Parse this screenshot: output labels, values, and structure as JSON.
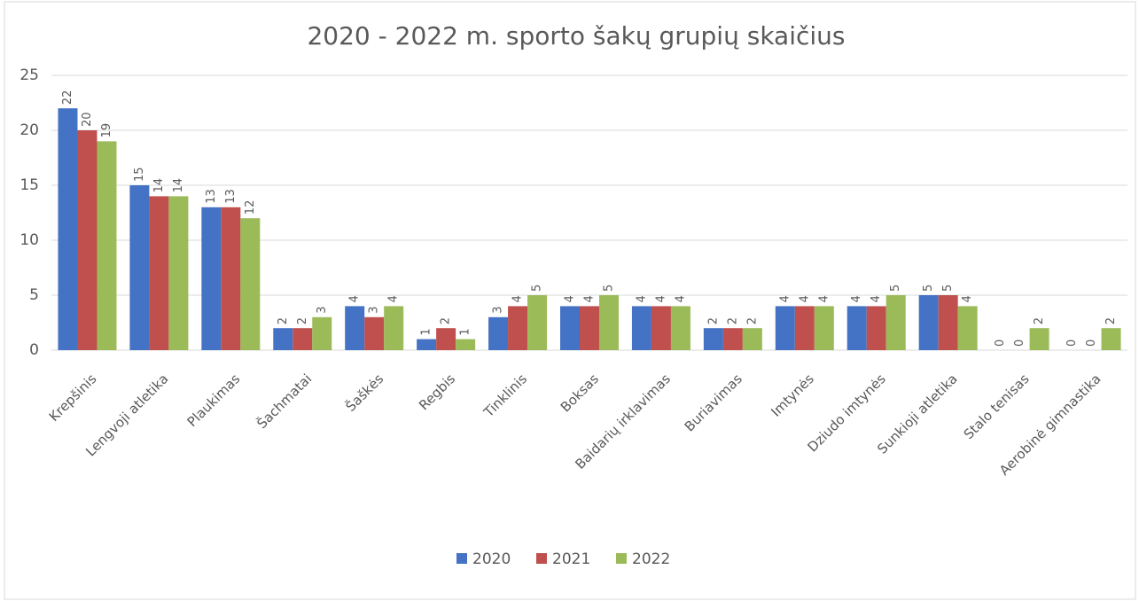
{
  "chart_data": {
    "type": "bar",
    "title": "2020 - 2022 m. sporto šakų grupių skaičius",
    "categories": [
      "Krepšinis",
      "Lengvoji atletika",
      "Plaukimas",
      "Šachmatai",
      "Šaškės",
      "Regbis",
      "Tinklinis",
      "Boksas",
      "Baidarių irklavimas",
      "Buriavimas",
      "Imtynės",
      "Dziudo imtynės",
      "Sunkioji atletika",
      "Stalo tenisas",
      "Aerobinė gimnastika"
    ],
    "series": [
      {
        "name": "2020",
        "color": "#4472c4",
        "values": [
          22,
          15,
          13,
          2,
          4,
          1,
          3,
          4,
          4,
          2,
          4,
          4,
          5,
          0,
          0
        ]
      },
      {
        "name": "2021",
        "color": "#c0504d",
        "values": [
          20,
          14,
          13,
          2,
          3,
          2,
          4,
          4,
          4,
          2,
          4,
          4,
          5,
          0,
          0
        ]
      },
      {
        "name": "2022",
        "color": "#9bbb59",
        "values": [
          19,
          14,
          12,
          3,
          4,
          1,
          5,
          5,
          4,
          2,
          4,
          5,
          4,
          2,
          2
        ]
      }
    ],
    "ylim": [
      0,
      25
    ],
    "yticks": [
      0,
      5,
      10,
      15,
      20,
      25
    ],
    "grid": true,
    "legend": "bottom"
  }
}
